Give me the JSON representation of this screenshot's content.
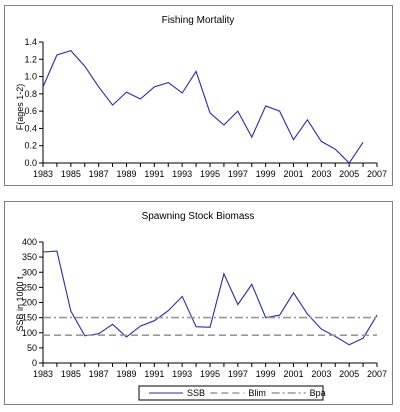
{
  "chart_data": [
    {
      "type": "line",
      "title": "Fishing Mortality",
      "xlabel": "",
      "ylabel": "F(ages 1-2)",
      "xlim": [
        1983,
        2007
      ],
      "ylim": [
        0,
        1.4
      ],
      "x_ticks": [
        "1983",
        "1985",
        "1987",
        "1989",
        "1991",
        "1993",
        "1995",
        "1997",
        "1999",
        "2001",
        "2003",
        "2005",
        "2007"
      ],
      "y_ticks": [
        "0.0",
        "0.2",
        "0.4",
        "0.6",
        "0.8",
        "1.0",
        "1.2",
        "1.4"
      ],
      "grid": false,
      "series": [
        {
          "color": "#2b2bb0",
          "x": [
            1983,
            1984,
            1985,
            1986,
            1987,
            1988,
            1989,
            1990,
            1991,
            1992,
            1993,
            1994,
            1995,
            1996,
            1997,
            1998,
            1999,
            2000,
            2001,
            2002,
            2003,
            2004,
            2005,
            2006
          ],
          "y": [
            0.88,
            1.25,
            1.3,
            1.12,
            0.88,
            0.67,
            0.82,
            0.74,
            0.88,
            0.93,
            0.81,
            1.06,
            0.58,
            0.44,
            0.6,
            0.3,
            0.66,
            0.6,
            0.27,
            0.5,
            0.25,
            0.16,
            0.0,
            0.24
          ]
        }
      ]
    },
    {
      "type": "line",
      "title": "Spawning Stock Biomass",
      "xlabel": "",
      "ylabel": "SSB in 1000 t",
      "xlim": [
        1983,
        2007
      ],
      "ylim": [
        0,
        400
      ],
      "x_ticks": [
        "1983",
        "1985",
        "1987",
        "1989",
        "1991",
        "1993",
        "1995",
        "1997",
        "1999",
        "2001",
        "2003",
        "2005",
        "2007"
      ],
      "y_ticks": [
        "0",
        "50",
        "100",
        "150",
        "200",
        "250",
        "300",
        "350",
        "400"
      ],
      "grid": false,
      "legend_position": "bottom",
      "series": [
        {
          "name": "SSB",
          "color": "#2b2bb0",
          "style": "solid",
          "x": [
            1983,
            1984,
            1985,
            1986,
            1987,
            1988,
            1989,
            1990,
            1991,
            1992,
            1993,
            1994,
            1995,
            1996,
            1997,
            1998,
            1999,
            2000,
            2001,
            2002,
            2003,
            2004,
            2005,
            2006,
            2007
          ],
          "y": [
            367,
            370,
            172,
            90,
            97,
            128,
            86,
            122,
            140,
            173,
            220,
            120,
            118,
            295,
            193,
            260,
            150,
            158,
            232,
            162,
            112,
            88,
            60,
            82,
            158
          ]
        },
        {
          "name": "Blim",
          "color": "#999999",
          "style": "dash",
          "x": [
            1983,
            2007
          ],
          "y": [
            92,
            92
          ]
        },
        {
          "name": "Bpa",
          "color": "#999999",
          "style": "dashdot",
          "x": [
            1983,
            2007
          ],
          "y": [
            150,
            150
          ]
        }
      ]
    }
  ]
}
